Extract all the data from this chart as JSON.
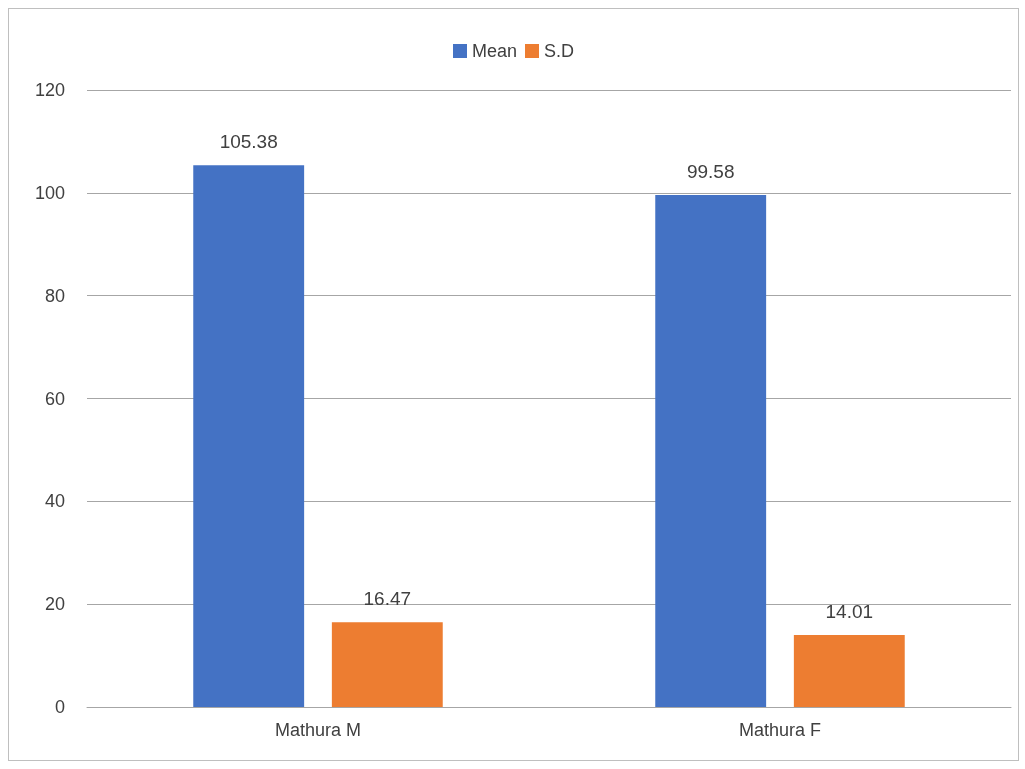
{
  "chart_data": {
    "type": "bar",
    "categories": [
      "Mathura M",
      "Mathura F"
    ],
    "series": [
      {
        "name": "Mean",
        "color": "#4472c4",
        "values": [
          105.38,
          99.58
        ]
      },
      {
        "name": "S.D",
        "color": "#ed7d31",
        "values": [
          16.47,
          14.01
        ]
      }
    ],
    "ylim": [
      0,
      120
    ],
    "yticks": [
      0,
      20,
      40,
      60,
      80,
      100,
      120
    ],
    "grid": "y",
    "legend": "top",
    "data_labels": true
  }
}
